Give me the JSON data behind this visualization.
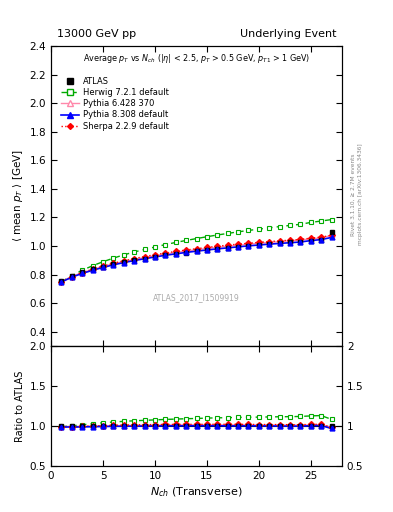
{
  "title_left": "13000 GeV pp",
  "title_right": "Underlying Event",
  "ylabel_main": "\\langle mean p_{T} \\rangle [GeV]",
  "ylabel_ratio": "Ratio to ATLAS",
  "xlabel": "N_{ch} (Transverse)",
  "watermark": "ATLAS_2017_I1509919",
  "right_label1": "Rivet 3.1.10, ≥ 2.7M events",
  "right_label2": "mcplots.cern.ch [arXiv:1306.3436]",
  "ylim_main": [
    0.3,
    2.4
  ],
  "ylim_ratio": [
    0.5,
    2.0
  ],
  "yticks_main": [
    0.4,
    0.6,
    0.8,
    1.0,
    1.2,
    1.4,
    1.6,
    1.8,
    2.0,
    2.2,
    2.4
  ],
  "yticks_ratio": [
    0.5,
    1.0,
    1.5,
    2.0
  ],
  "xlim": [
    0,
    28
  ],
  "xticks": [
    0,
    5,
    10,
    15,
    20,
    25
  ],
  "nch": [
    1,
    2,
    3,
    4,
    5,
    6,
    7,
    8,
    9,
    10,
    11,
    12,
    13,
    14,
    15,
    16,
    17,
    18,
    19,
    20,
    21,
    22,
    23,
    24,
    25,
    26,
    27
  ],
  "atlas": [
    0.757,
    0.793,
    0.818,
    0.838,
    0.856,
    0.872,
    0.887,
    0.9,
    0.912,
    0.923,
    0.934,
    0.944,
    0.953,
    0.962,
    0.97,
    0.978,
    0.986,
    0.993,
    1.0,
    1.007,
    1.013,
    1.019,
    1.025,
    1.03,
    1.035,
    1.04,
    1.095
  ],
  "herwig": [
    0.75,
    0.793,
    0.83,
    0.862,
    0.89,
    0.915,
    0.938,
    0.958,
    0.976,
    0.993,
    1.01,
    1.025,
    1.039,
    1.052,
    1.065,
    1.077,
    1.088,
    1.099,
    1.109,
    1.118,
    1.127,
    1.136,
    1.144,
    1.152,
    1.165,
    1.175,
    1.185
  ],
  "pythia6": [
    0.752,
    0.787,
    0.813,
    0.836,
    0.856,
    0.875,
    0.891,
    0.906,
    0.92,
    0.932,
    0.944,
    0.955,
    0.965,
    0.974,
    0.983,
    0.991,
    0.999,
    1.006,
    1.013,
    1.019,
    1.025,
    1.031,
    1.037,
    1.042,
    1.05,
    1.056,
    1.075
  ],
  "pythia8": [
    0.748,
    0.782,
    0.808,
    0.83,
    0.85,
    0.868,
    0.884,
    0.898,
    0.911,
    0.923,
    0.935,
    0.945,
    0.955,
    0.964,
    0.972,
    0.98,
    0.987,
    0.994,
    1.001,
    1.007,
    1.013,
    1.018,
    1.023,
    1.028,
    1.038,
    1.045,
    1.06
  ],
  "sherpa": [
    0.747,
    0.783,
    0.813,
    0.838,
    0.86,
    0.879,
    0.897,
    0.912,
    0.926,
    0.939,
    0.951,
    0.962,
    0.972,
    0.981,
    0.99,
    0.998,
    1.006,
    1.013,
    1.019,
    1.025,
    1.031,
    1.036,
    1.041,
    1.046,
    1.055,
    1.062,
    1.075
  ],
  "atlas_color": "#000000",
  "herwig_color": "#00aa00",
  "pythia6_color": "#ff88aa",
  "pythia8_color": "#0000ff",
  "sherpa_color": "#ff0000"
}
